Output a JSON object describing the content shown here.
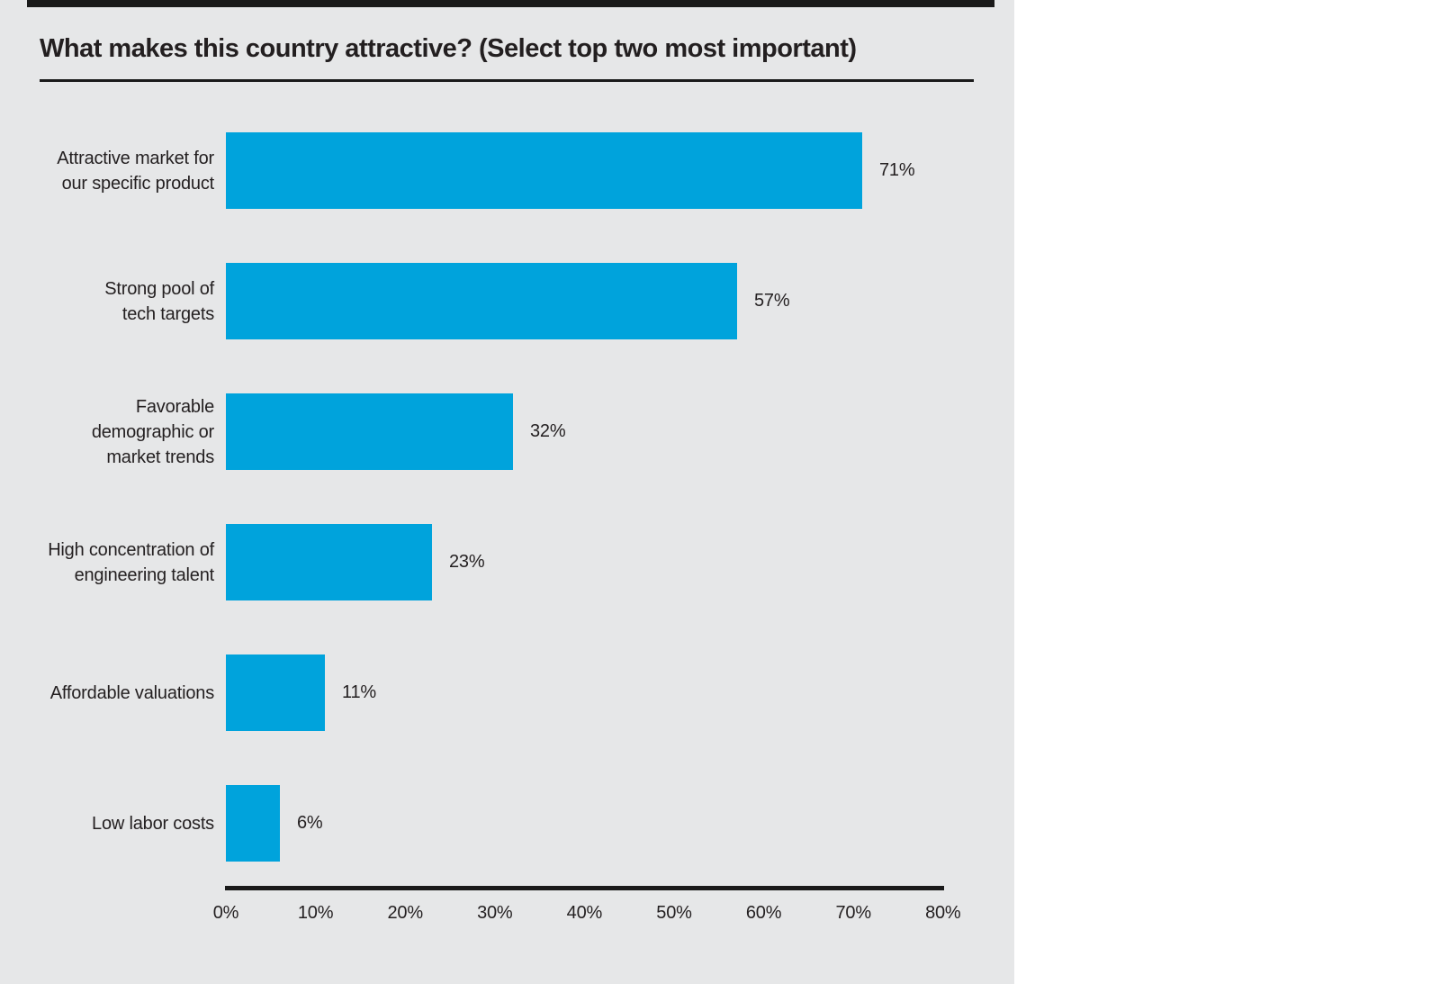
{
  "page": {
    "background_color": "#ffffff",
    "canvas_color": "#e6e7e8",
    "text_color": "#231f20",
    "rule_color": "#1a1a1a"
  },
  "chart_data": {
    "type": "bar",
    "orientation": "horizontal",
    "title": "What makes this country attractive? (Select top two most important)",
    "categories": [
      "Attractive market for our specific product",
      "Strong pool of tech targets",
      "Favorable demographic or market trends",
      "High concentration of engineering talent",
      "Affordable valuations",
      "Low labor costs"
    ],
    "category_label_lines": [
      [
        "Attractive market for",
        "our specific product"
      ],
      [
        "Strong pool of",
        "tech targets"
      ],
      [
        "Favorable",
        "demographic or",
        "market trends"
      ],
      [
        "High concentration of",
        "engineering talent"
      ],
      [
        "Affordable valuations"
      ],
      [
        "Low labor costs"
      ]
    ],
    "values": [
      71,
      57,
      32,
      23,
      11,
      6
    ],
    "value_labels": [
      "71%",
      "57%",
      "32%",
      "23%",
      "11%",
      "6%"
    ],
    "xlabel": "",
    "ylabel": "",
    "xlim": [
      0,
      80
    ],
    "x_ticks": [
      0,
      10,
      20,
      30,
      40,
      50,
      60,
      70,
      80
    ],
    "x_tick_labels": [
      "0%",
      "10%",
      "20%",
      "30%",
      "40%",
      "50%",
      "60%",
      "70%",
      "80%"
    ],
    "grid": false,
    "legend": null,
    "bar_color": "#00a3dc",
    "axis_color": "#1a1a1a"
  }
}
